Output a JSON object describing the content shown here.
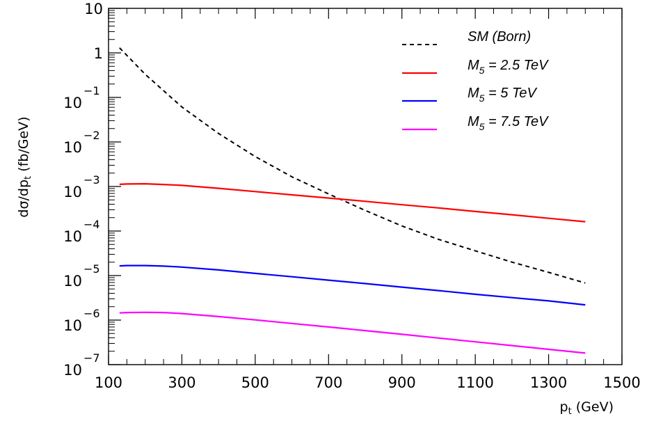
{
  "chart_data": {
    "type": "line",
    "title": "",
    "xlabel": "p_t (GeV)",
    "ylabel": "dσ/dp_t (fb/GeV)",
    "xlim": [
      100,
      1500
    ],
    "ylim": [
      1e-07,
      10
    ],
    "yscale": "log",
    "grid": false,
    "legend_position": "top-right",
    "x_ticks": [
      100,
      300,
      500,
      700,
      900,
      1100,
      1300,
      1500
    ],
    "x_tick_labels": [
      "100",
      "300",
      "500",
      "700",
      "900",
      "1100",
      "1300",
      "1500"
    ],
    "y_ticks": [
      {
        "value": 10,
        "base": "10",
        "exp": ""
      },
      {
        "value": 1,
        "base": "1",
        "exp": ""
      },
      {
        "value": 0.1,
        "base": "10",
        "exp": "−1"
      },
      {
        "value": 0.01,
        "base": "10",
        "exp": "−2"
      },
      {
        "value": 0.001,
        "base": "10",
        "exp": "−3"
      },
      {
        "value": 0.0001,
        "base": "10",
        "exp": "−4"
      },
      {
        "value": 1e-05,
        "base": "10",
        "exp": "−5"
      },
      {
        "value": 1e-06,
        "base": "10",
        "exp": "−6"
      },
      {
        "value": 1e-07,
        "base": "10",
        "exp": "−7"
      }
    ],
    "series": [
      {
        "name": "SM (Born)",
        "color": "#000000",
        "dash": true,
        "x": [
          130,
          200,
          300,
          400,
          500,
          600,
          700,
          800,
          900,
          1000,
          1100,
          1200,
          1300,
          1400
        ],
        "y": [
          1.3,
          0.33,
          0.061,
          0.0155,
          0.0047,
          0.00165,
          0.00068,
          0.00029,
          0.00013,
          6.5e-05,
          3.6e-05,
          2e-05,
          1.18e-05,
          6.8e-06
        ]
      },
      {
        "name": "M_5 = 2.5 TeV",
        "color": "#ff0000",
        "dash": false,
        "x": [
          130,
          150,
          200,
          250,
          300,
          400,
          500,
          600,
          700,
          800,
          900,
          1000,
          1100,
          1200,
          1300,
          1400
        ],
        "y": [
          0.00112,
          0.00114,
          0.00115,
          0.00111,
          0.00106,
          0.00091,
          0.00077,
          0.00065,
          0.00055,
          0.000465,
          0.00039,
          0.00033,
          0.000275,
          0.000232,
          0.000193,
          0.000162
        ]
      },
      {
        "name": "M_5 = 5 TeV",
        "color": "#0000ff",
        "dash": false,
        "x": [
          130,
          150,
          200,
          250,
          300,
          400,
          500,
          600,
          700,
          800,
          900,
          1000,
          1100,
          1200,
          1300,
          1400
        ],
        "y": [
          1.65e-05,
          1.68e-05,
          1.68e-05,
          1.63e-05,
          1.55e-05,
          1.34e-05,
          1.12e-05,
          9.4e-06,
          7.9e-06,
          6.6e-06,
          5.5e-06,
          4.6e-06,
          3.8e-06,
          3.2e-06,
          2.7e-06,
          2.2e-06
        ]
      },
      {
        "name": "M_5 = 7.5 TeV",
        "color": "#ff00ff",
        "dash": false,
        "x": [
          130,
          150,
          200,
          250,
          300,
          400,
          500,
          600,
          700,
          800,
          900,
          1000,
          1100,
          1200,
          1300,
          1400
        ],
        "y": [
          1.45e-06,
          1.48e-06,
          1.49e-06,
          1.48e-06,
          1.4e-06,
          1.2e-06,
          1.01e-06,
          8.4e-07,
          7e-07,
          5.8e-07,
          4.8e-07,
          3.95e-07,
          3.25e-07,
          2.68e-07,
          2.21e-07,
          1.82e-07
        ]
      }
    ],
    "legend": [
      {
        "label": "SM (Born)",
        "series": 0
      },
      {
        "label": "M5 = 2.5 TeV",
        "series": 1
      },
      {
        "label": "M5 = 5 TeV",
        "series": 2
      },
      {
        "label": "M5 = 7.5 TeV",
        "series": 3
      }
    ]
  }
}
